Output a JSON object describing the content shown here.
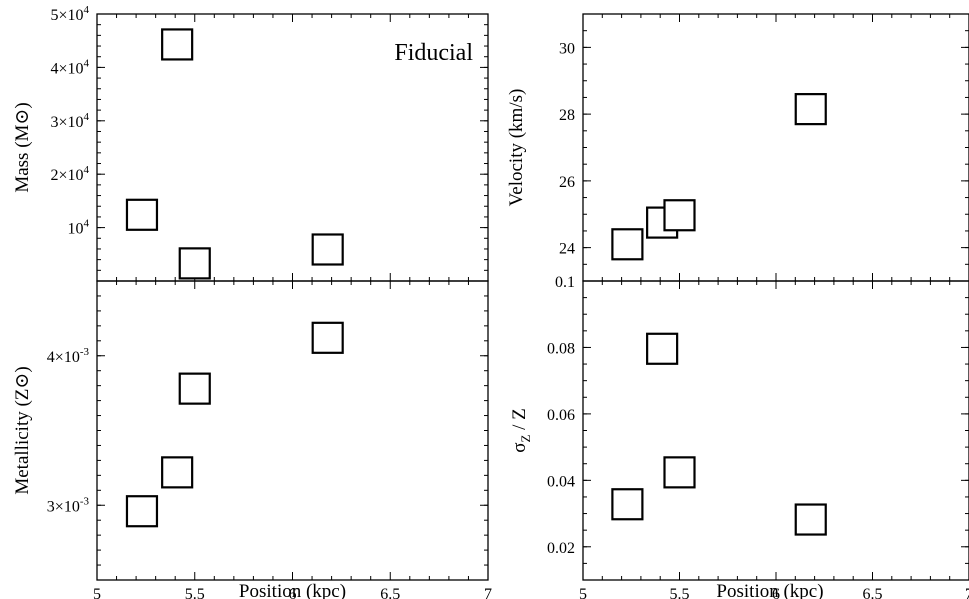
{
  "chart_data": [
    {
      "type": "scatter",
      "panel": "top-left",
      "annotation": "Fiducial",
      "xlabel": "",
      "ylabel": "Mass (M⊙)",
      "xlim": [
        5,
        7
      ],
      "ylim": [
        0,
        50000
      ],
      "xticks": [
        "5",
        "5.5",
        "6",
        "6.5",
        "7"
      ],
      "yticks": [
        {
          "value": 10000,
          "base": "10",
          "exp": "4"
        },
        {
          "value": 20000,
          "base": "2×10",
          "exp": "4"
        },
        {
          "value": 30000,
          "base": "3×10",
          "exp": "4"
        },
        {
          "value": 40000,
          "base": "4×10",
          "exp": "4"
        },
        {
          "value": 50000,
          "base": "5×10",
          "exp": "4"
        }
      ],
      "points": [
        {
          "x": 5.23,
          "y": 12400
        },
        {
          "x": 5.41,
          "y": 44300
        },
        {
          "x": 5.5,
          "y": 3300
        },
        {
          "x": 6.18,
          "y": 5900
        }
      ]
    },
    {
      "type": "scatter",
      "panel": "top-right",
      "xlabel": "",
      "ylabel": "Velocity (km/s)",
      "xlim": [
        5,
        7
      ],
      "ylim": [
        23,
        31
      ],
      "xticks": [
        "5",
        "5.5",
        "6",
        "6.5",
        "7"
      ],
      "yticks": [
        {
          "value": 24,
          "label": "24"
        },
        {
          "value": 26,
          "label": "26"
        },
        {
          "value": 28,
          "label": "28"
        },
        {
          "value": 30,
          "label": "30"
        }
      ],
      "points": [
        {
          "x": 5.23,
          "y": 24.1
        },
        {
          "x": 5.41,
          "y": 24.75
        },
        {
          "x": 5.5,
          "y": 24.97
        },
        {
          "x": 6.18,
          "y": 28.15
        }
      ]
    },
    {
      "type": "scatter",
      "panel": "bottom-left",
      "xlabel": "Position (kpc)",
      "ylabel": "Metallicity (Z⊙)",
      "xlim": [
        5,
        7
      ],
      "ylim": [
        0.0025,
        0.0045
      ],
      "xticks": [
        "5",
        "5.5",
        "6",
        "6.5",
        "7"
      ],
      "yticks": [
        {
          "value": 0.003,
          "base": "3×10",
          "exp": "-3"
        },
        {
          "value": 0.004,
          "base": "4×10",
          "exp": "-3"
        }
      ],
      "points": [
        {
          "x": 5.23,
          "y": 0.00296
        },
        {
          "x": 5.41,
          "y": 0.00322
        },
        {
          "x": 5.5,
          "y": 0.00378
        },
        {
          "x": 6.18,
          "y": 0.00412
        }
      ]
    },
    {
      "type": "scatter",
      "panel": "bottom-right",
      "xlabel": "Position (kpc)",
      "ylabel": "σZ / Z",
      "xlim": [
        5,
        7
      ],
      "ylim": [
        0.01,
        0.1
      ],
      "xticks": [
        "5",
        "5.5",
        "6",
        "6.5",
        "7"
      ],
      "yticks": [
        {
          "value": 0.02,
          "label": "0.02"
        },
        {
          "value": 0.04,
          "label": "0.04"
        },
        {
          "value": 0.06,
          "label": "0.06"
        },
        {
          "value": 0.08,
          "label": "0.08"
        },
        {
          "value": 0.1,
          "label": "0.1"
        }
      ],
      "points": [
        {
          "x": 5.23,
          "y": 0.0328
        },
        {
          "x": 5.41,
          "y": 0.0796
        },
        {
          "x": 5.5,
          "y": 0.0424
        },
        {
          "x": 6.18,
          "y": 0.0282
        }
      ]
    }
  ]
}
